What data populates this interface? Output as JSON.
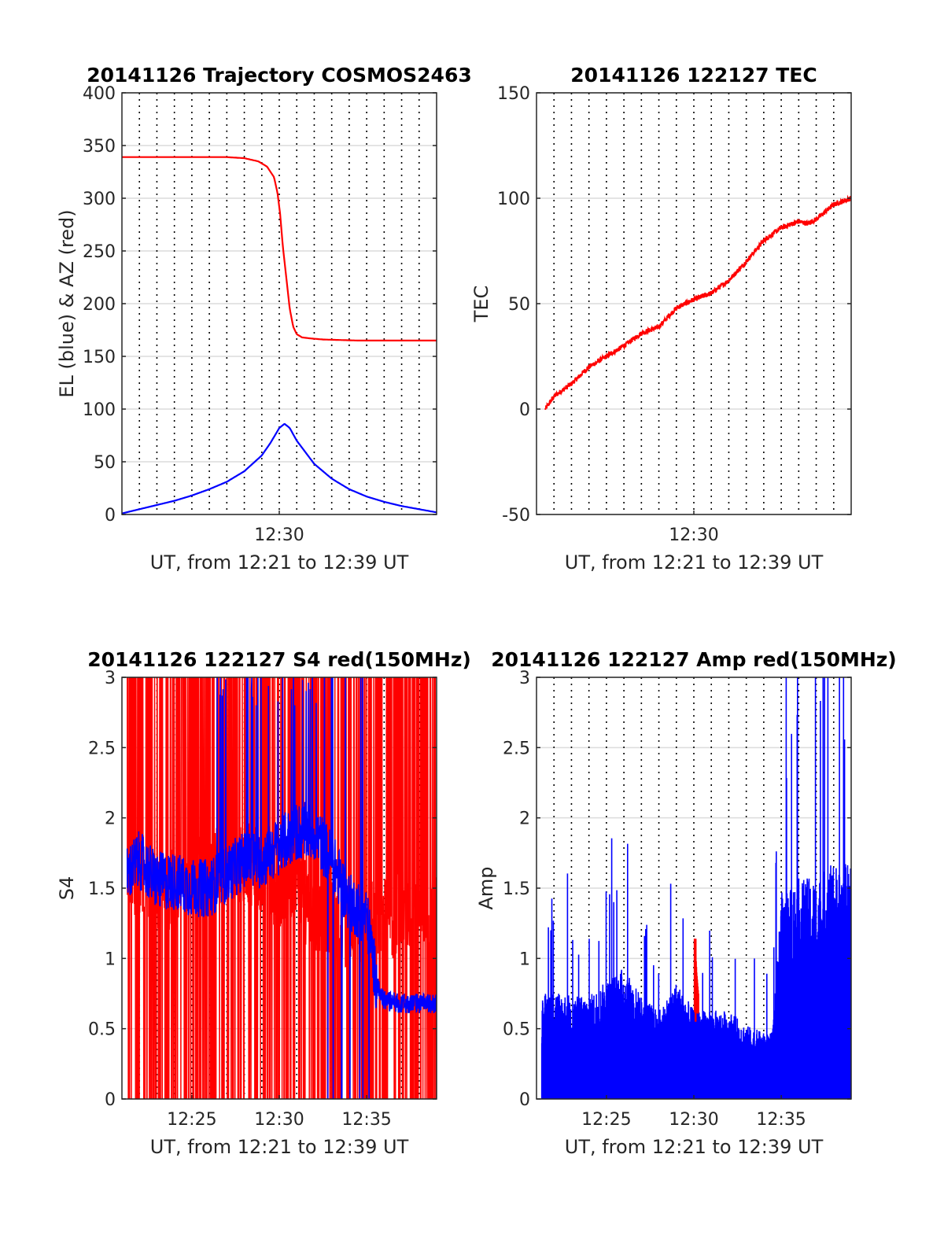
{
  "chart_data": [
    {
      "type": "line",
      "title": "20141126 Trajectory COSMOS2463",
      "xlabel": "UT, from 12:21 to 12:39 UT",
      "ylabel": "EL (blue) & AZ (red)",
      "xlim": [
        0,
        18
      ],
      "ylim": [
        0,
        400
      ],
      "yticks": [
        0,
        50,
        100,
        150,
        200,
        250,
        300,
        350,
        400
      ],
      "xticks": [
        {
          "x": 9,
          "label": "12:30"
        }
      ],
      "grid": "dotted vertical at 1-minute intervals, light horizontal at y ticks",
      "series": [
        {
          "color": "#ff0000",
          "style": "smooth",
          "x": [
            0.0,
            3.0,
            6.0,
            7.0,
            7.8,
            8.3,
            8.7,
            8.9,
            9.05,
            9.2,
            9.4,
            9.6,
            9.8,
            10.0,
            10.3,
            10.8,
            11.5,
            12.5,
            13.5,
            15.0,
            18.0
          ],
          "y": [
            339,
            339,
            339,
            338,
            335,
            330,
            320,
            305,
            285,
            255,
            225,
            195,
            178,
            171,
            168,
            167,
            166,
            165.5,
            165,
            165,
            165
          ]
        },
        {
          "color": "#0000ff",
          "style": "smooth",
          "x": [
            0.0,
            1.0,
            2.0,
            3.0,
            4.0,
            5.0,
            6.0,
            7.0,
            8.0,
            8.5,
            9.0,
            9.3,
            9.6,
            10.0,
            11.0,
            12.0,
            13.0,
            14.0,
            15.0,
            16.0,
            17.0,
            18.0
          ],
          "y": [
            1,
            5,
            9,
            13,
            18,
            24,
            31,
            41,
            56,
            68,
            82,
            86,
            82,
            70,
            48,
            34,
            24,
            17,
            12,
            8,
            5,
            2
          ]
        }
      ]
    },
    {
      "type": "line",
      "title": "20141126 122127 TEC",
      "xlabel": "UT, from 12:21 to 12:39 UT",
      "ylabel": "TEC",
      "xlim": [
        0,
        18
      ],
      "ylim": [
        -50,
        150
      ],
      "yticks": [
        -50,
        0,
        50,
        100,
        150
      ],
      "xticks": [
        {
          "x": 9,
          "label": "12:30"
        }
      ],
      "grid": "dotted vertical at 1-minute intervals, light horizontal at y ticks",
      "series": [
        {
          "color": "#ff0000",
          "style": "noisy",
          "x": [
            0.5,
            1.0,
            2.0,
            3.0,
            4.0,
            5.0,
            6.0,
            7.0,
            8.0,
            9.0,
            10.0,
            11.0,
            12.0,
            13.0,
            14.0,
            15.0,
            15.5,
            16.0,
            17.0,
            18.0
          ],
          "y": [
            0,
            6,
            12,
            20,
            25,
            30,
            36,
            39,
            48,
            52,
            55,
            61,
            70,
            80,
            86,
            89,
            88,
            90,
            97,
            100
          ]
        }
      ]
    },
    {
      "type": "line",
      "title": "20141126 122127 S4 red(150MHz)",
      "xlabel": "UT, from 12:21 to 12:39 UT",
      "ylabel": "S4",
      "xlim": [
        0,
        18
      ],
      "ylim": [
        0,
        3
      ],
      "yticks": [
        0,
        0.5,
        1,
        1.5,
        2,
        2.5,
        3
      ],
      "xticks": [
        {
          "x": 4,
          "label": "12:25"
        },
        {
          "x": 9,
          "label": "12:30"
        },
        {
          "x": 14,
          "label": "12:35"
        }
      ],
      "grid": "dotted vertical at 1-minute intervals, light horizontal at y ticks",
      "series": [
        {
          "color": "#ff0000",
          "style": "spiky",
          "x": [
            0.3,
            1.0,
            2.0,
            3.0,
            4.0,
            5.0,
            6.0,
            7.0,
            8.0,
            9.0,
            10.0,
            10.5,
            11.0,
            12.0,
            13.0,
            14.0,
            15.0,
            16.0,
            17.0,
            18.0
          ],
          "y": [
            1.6,
            1.6,
            1.5,
            1.5,
            1.6,
            1.6,
            1.7,
            1.7,
            1.6,
            1.5,
            1.6,
            1.4,
            1.3,
            1.3,
            1.2,
            1.3,
            1.3,
            1.3,
            1.3,
            1.3
          ]
        },
        {
          "color": "#0000ff",
          "style": "noisy",
          "x": [
            0.3,
            1.0,
            2.0,
            3.0,
            4.0,
            5.0,
            6.0,
            7.0,
            8.0,
            9.0,
            10.0,
            11.0,
            12.0,
            13.0,
            14.0,
            14.6,
            15.0,
            16.0,
            17.0,
            18.0
          ],
          "y": [
            1.6,
            1.7,
            1.55,
            1.55,
            1.5,
            1.5,
            1.6,
            1.7,
            1.7,
            1.8,
            1.9,
            1.9,
            1.7,
            1.4,
            1.3,
            0.8,
            0.7,
            0.68,
            0.68,
            0.68
          ]
        }
      ]
    },
    {
      "type": "line",
      "title": "20141126 122127 Amp red(150MHz)",
      "xlabel": "UT, from 12:21 to 12:39 UT",
      "ylabel": "Amp",
      "xlim": [
        0,
        18
      ],
      "ylim": [
        0,
        3
      ],
      "yticks": [
        0,
        0.5,
        1,
        1.5,
        2,
        2.5,
        3
      ],
      "xticks": [
        {
          "x": 4,
          "label": "12:25"
        },
        {
          "x": 9,
          "label": "12:30"
        },
        {
          "x": 14,
          "label": "12:35"
        }
      ],
      "grid": "dotted vertical at 1-minute intervals, light horizontal at y ticks",
      "series": [
        {
          "color": "#ff0000",
          "style": "bars",
          "x": [
            9.05,
            9.15,
            9.25
          ],
          "y": [
            1.14,
            0.9,
            0.75
          ]
        },
        {
          "color": "#0000ff",
          "style": "bars",
          "x": [
            0.3,
            1.0,
            2.0,
            3.0,
            4.0,
            5.0,
            6.0,
            7.0,
            8.0,
            9.0,
            10.0,
            11.0,
            12.0,
            13.0,
            13.5,
            14.0,
            15.0,
            16.0,
            17.0,
            18.0
          ],
          "y": [
            0.7,
            0.75,
            0.7,
            0.7,
            0.8,
            0.9,
            0.7,
            0.6,
            0.8,
            0.6,
            0.6,
            0.6,
            0.5,
            0.45,
            0.45,
            1.4,
            1.5,
            1.5,
            1.6,
            1.6
          ]
        }
      ]
    }
  ]
}
